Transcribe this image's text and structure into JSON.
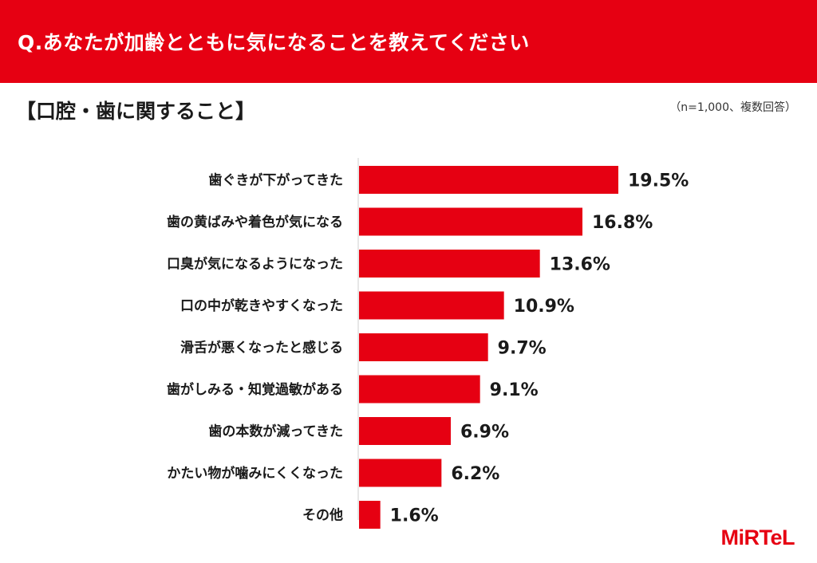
{
  "header": {
    "question": "Q.あなたが加齢とともに気になることを教えてください"
  },
  "section_title": "【口腔・歯に関すること】",
  "sample_note": "（n=1,000、複数回答）",
  "logo_text": "MiRTeL",
  "colors": {
    "accent": "#e60012"
  },
  "chart_data": {
    "type": "bar",
    "orientation": "horizontal",
    "categories": [
      "歯ぐきが下がってきた",
      "歯の黄ばみや着色が気になる",
      "口臭が気になるようになった",
      "口の中が乾きやすくなった",
      "滑舌が悪くなったと感じる",
      "歯がしみる・知覚過敏がある",
      "歯の本数が減ってきた",
      "かたい物が噛みにくくなった",
      "その他"
    ],
    "values": [
      19.5,
      16.8,
      13.6,
      10.9,
      9.7,
      9.1,
      6.9,
      6.2,
      1.6
    ],
    "value_labels": [
      "19.5%",
      "16.8%",
      "13.6%",
      "10.9%",
      "9.7%",
      "9.1%",
      "6.9%",
      "6.2%",
      "1.6%"
    ],
    "xlim": [
      0,
      19.5
    ],
    "grid": false,
    "bar_color": "#e60012"
  }
}
